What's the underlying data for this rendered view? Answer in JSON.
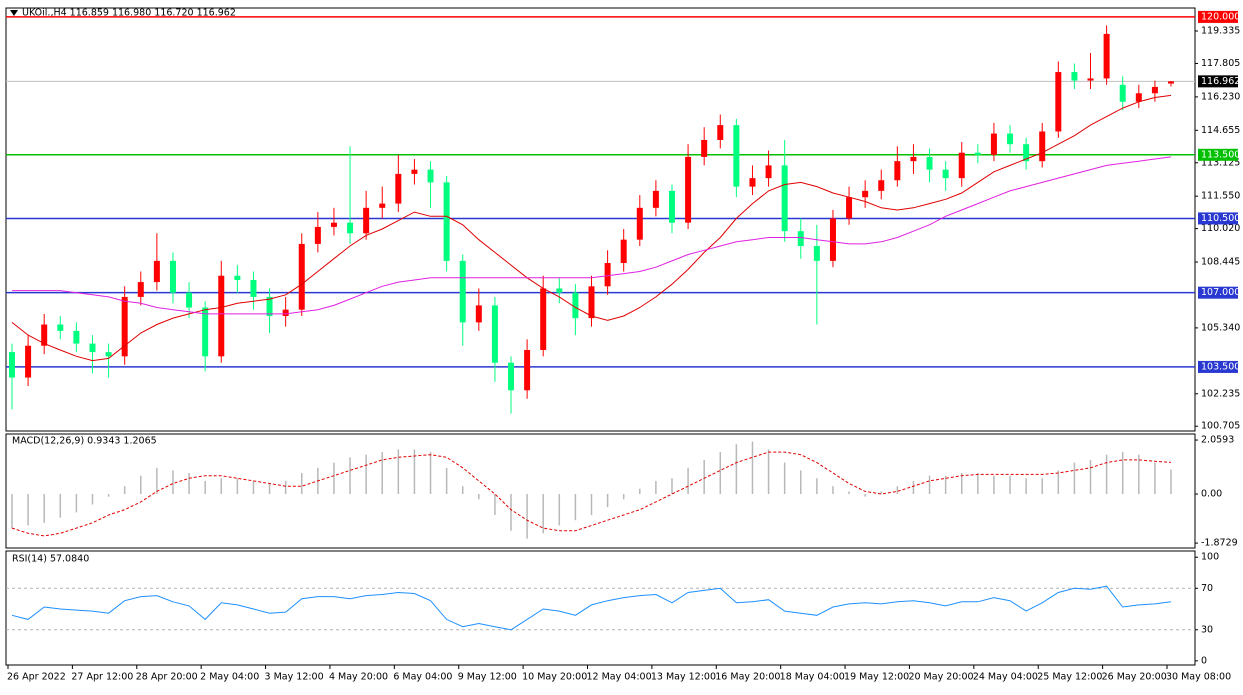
{
  "chart_data": [
    {
      "type": "candlestick",
      "legend": "UKOil.,H4  116.859 116.980 116.720 116.962",
      "categories": [
        "26 Apr 2022",
        null,
        null,
        null,
        "27 Apr 12:00",
        null,
        null,
        null,
        "28 Apr 20:00",
        null,
        null,
        null,
        "2 May 04:00",
        null,
        null,
        null,
        "3 May 12:00",
        null,
        null,
        null,
        "4 May 20:00",
        null,
        null,
        null,
        "6 May 04:00",
        null,
        null,
        null,
        "9 May 12:00",
        null,
        null,
        null,
        "10 May 20:00",
        null,
        null,
        null,
        "12 May 04:00",
        null,
        null,
        null,
        "13 May 12:00",
        null,
        null,
        null,
        "16 May 20:00",
        null,
        null,
        null,
        "18 May 04:00",
        null,
        null,
        null,
        "19 May 12:00",
        null,
        null,
        null,
        "20 May 20:00",
        null,
        null,
        null,
        "24 May 04:00",
        null,
        null,
        null,
        "25 May 12:00",
        null,
        null,
        null,
        "26 May 20:00",
        null,
        null,
        null,
        "30 May 08:00"
      ],
      "open": [
        104.2,
        103.0,
        104.5,
        105.5,
        105.2,
        104.6,
        104.2,
        104.0,
        106.8,
        107.5,
        108.5,
        107.0,
        106.3,
        104.0,
        107.8,
        107.6,
        106.8,
        105.9,
        106.2,
        109.3,
        110.1,
        110.3,
        109.8,
        111.0,
        111.2,
        112.6,
        112.8,
        112.2,
        108.5,
        105.6,
        106.4,
        103.7,
        102.4,
        104.3,
        107.2,
        107.0,
        105.8,
        107.3,
        108.4,
        109.5,
        111.0,
        111.8,
        110.3,
        113.4,
        114.2,
        114.9,
        112.0,
        112.4,
        113.0,
        109.9,
        109.2,
        108.5,
        110.5,
        111.5,
        111.8,
        112.3,
        113.2,
        113.4,
        112.8,
        112.4,
        113.6,
        113.5,
        114.5,
        114.0,
        113.2,
        114.6,
        117.4,
        117.0,
        117.1,
        116.8,
        116.0,
        116.4,
        116.859
      ],
      "high": [
        104.6,
        105.0,
        106.0,
        105.9,
        105.6,
        105.0,
        104.6,
        107.3,
        108.0,
        109.8,
        108.9,
        107.5,
        106.6,
        108.5,
        108.3,
        108.0,
        107.2,
        106.8,
        109.8,
        110.8,
        111.0,
        113.9,
        111.8,
        112.0,
        113.5,
        113.3,
        113.2,
        112.5,
        108.8,
        107.2,
        106.8,
        104.0,
        104.8,
        107.8,
        107.7,
        107.4,
        107.8,
        109.0,
        110.0,
        111.6,
        112.3,
        112.1,
        114.0,
        114.8,
        115.4,
        115.2,
        113.0,
        113.7,
        114.2,
        110.5,
        110.2,
        110.9,
        112.0,
        112.3,
        112.8,
        113.9,
        114.0,
        113.8,
        113.2,
        114.1,
        114.0,
        115.0,
        114.9,
        114.3,
        115.0,
        117.9,
        117.8,
        118.3,
        119.6,
        117.2,
        116.8,
        117.0,
        116.98
      ],
      "low": [
        101.5,
        102.6,
        104.1,
        104.8,
        104.2,
        103.2,
        103.0,
        103.6,
        106.4,
        107.1,
        106.5,
        105.8,
        103.3,
        103.7,
        107.0,
        106.2,
        105.1,
        105.4,
        105.9,
        108.9,
        109.7,
        109.3,
        109.5,
        110.5,
        110.8,
        112.1,
        111.0,
        108.0,
        104.5,
        105.2,
        102.8,
        101.3,
        102.0,
        104.0,
        106.5,
        105.0,
        105.4,
        106.9,
        108.0,
        109.2,
        110.6,
        109.8,
        110.0,
        113.0,
        113.8,
        111.5,
        111.6,
        112.0,
        109.4,
        108.6,
        105.5,
        108.2,
        110.2,
        111.0,
        111.4,
        112.0,
        112.6,
        112.2,
        111.8,
        112.0,
        113.1,
        113.2,
        113.6,
        112.8,
        112.9,
        114.3,
        116.6,
        116.6,
        116.8,
        115.6,
        115.7,
        116.0,
        116.72
      ],
      "close": [
        103.0,
        104.5,
        105.5,
        105.2,
        104.6,
        104.2,
        104.0,
        106.8,
        107.5,
        108.5,
        107.0,
        106.3,
        104.0,
        107.8,
        107.6,
        106.8,
        105.9,
        106.2,
        109.3,
        110.1,
        110.3,
        109.8,
        111.0,
        111.2,
        112.6,
        112.8,
        112.2,
        108.5,
        105.6,
        106.4,
        103.7,
        102.4,
        104.3,
        107.2,
        107.0,
        105.8,
        107.3,
        108.4,
        109.5,
        111.0,
        111.8,
        110.3,
        113.4,
        114.2,
        114.9,
        112.0,
        112.4,
        113.0,
        109.9,
        109.2,
        108.5,
        110.5,
        111.5,
        111.8,
        112.3,
        113.2,
        113.4,
        112.8,
        112.4,
        113.6,
        113.5,
        114.5,
        114.0,
        113.2,
        114.6,
        117.4,
        117.0,
        117.1,
        119.2,
        116.0,
        116.4,
        116.7,
        116.962
      ],
      "up_color": "#ff0000",
      "down_color": "#00ff7f",
      "overlays": [
        {
          "color": "#e00000",
          "values": [
            105.6,
            105.0,
            104.6,
            104.3,
            104.0,
            103.8,
            103.9,
            104.5,
            105.1,
            105.5,
            105.8,
            106.0,
            106.2,
            106.3,
            106.5,
            106.6,
            106.7,
            106.9,
            107.4,
            108.0,
            108.6,
            109.2,
            109.7,
            110.0,
            110.4,
            110.8,
            110.6,
            110.6,
            110.2,
            109.5,
            108.9,
            108.3,
            107.7,
            107.2,
            106.8,
            106.3,
            105.9,
            105.7,
            105.9,
            106.3,
            106.8,
            107.4,
            108.1,
            108.9,
            109.6,
            110.5,
            111.2,
            111.8,
            112.1,
            112.2,
            112.0,
            111.7,
            111.5,
            111.3,
            111.0,
            110.9,
            111.0,
            111.2,
            111.4,
            111.7,
            112.2,
            112.7,
            113.0,
            113.3,
            113.6,
            114.0,
            114.4,
            114.9,
            115.3,
            115.7,
            116.0,
            116.2,
            116.3
          ]
        },
        {
          "color": "#e020e0",
          "values": [
            107.1,
            107.1,
            107.1,
            107.1,
            107.0,
            106.9,
            106.8,
            106.6,
            106.5,
            106.3,
            106.2,
            106.1,
            106.0,
            106.0,
            106.0,
            106.0,
            106.0,
            106.0,
            106.1,
            106.2,
            106.4,
            106.7,
            107.0,
            107.3,
            107.5,
            107.6,
            107.7,
            107.7,
            107.7,
            107.7,
            107.7,
            107.7,
            107.7,
            107.7,
            107.7,
            107.7,
            107.7,
            107.8,
            107.9,
            108.0,
            108.2,
            108.5,
            108.8,
            109.0,
            109.2,
            109.4,
            109.5,
            109.6,
            109.6,
            109.6,
            109.5,
            109.4,
            109.3,
            109.3,
            109.4,
            109.6,
            109.9,
            110.2,
            110.6,
            110.9,
            111.2,
            111.5,
            111.8,
            112.0,
            112.2,
            112.4,
            112.6,
            112.8,
            113.0,
            113.1,
            113.2,
            113.3,
            113.4
          ]
        }
      ],
      "ylim": [
        100.48,
        120.42
      ],
      "yticks": [
        119.335,
        117.805,
        {
          "value": 116.23,
          "label": "116.230"
        },
        114.655,
        113.125,
        {
          "value": 111.55,
          "label": "111.550"
        },
        {
          "value": 110.02,
          "label": "110.020"
        },
        108.445,
        {
          "value": 105.34,
          "label": "105.340"
        },
        102.235,
        100.705
      ],
      "current_price": 116.962,
      "levels": [
        {
          "value": 120,
          "label": "120.000",
          "color": "#ff0000"
        },
        {
          "value": 113.5,
          "label": "113.500",
          "color": "#00c000"
        },
        {
          "value": 110.5,
          "label": "110.500",
          "color": "#2838d0"
        },
        {
          "value": 107,
          "label": "107.000",
          "color": "#2838d0"
        },
        {
          "value": 103.5,
          "label": "103.500",
          "color": "#2838d0"
        }
      ]
    },
    {
      "type": "macd",
      "legend": "MACD(12,26,9) 0.9343 1.2065",
      "histogram": {
        "color": "#b8b8b8",
        "values": [
          -1.3,
          -1.2,
          -1.1,
          -0.9,
          -0.7,
          -0.4,
          -0.1,
          0.3,
          0.7,
          1.0,
          0.9,
          0.8,
          0.5,
          0.6,
          0.6,
          0.5,
          0.4,
          0.5,
          0.8,
          1.0,
          1.2,
          1.4,
          1.5,
          1.6,
          1.7,
          1.7,
          1.6,
          1.0,
          0.3,
          -0.2,
          -0.8,
          -1.4,
          -1.7,
          -1.5,
          -1.2,
          -1.0,
          -0.8,
          -0.5,
          -0.2,
          0.2,
          0.5,
          0.6,
          1.0,
          1.3,
          1.6,
          1.9,
          2.0,
          1.7,
          1.2,
          0.9,
          0.6,
          0.3,
          0.1,
          -0.1,
          0.1,
          0.3,
          0.5,
          0.7,
          0.7,
          0.8,
          0.8,
          0.7,
          0.7,
          0.6,
          0.6,
          0.9,
          1.2,
          1.3,
          1.5,
          1.6,
          1.5,
          1.2,
          0.9343
        ]
      },
      "signal": {
        "color": "#e00000",
        "values": [
          -1.3,
          -1.5,
          -1.6,
          -1.5,
          -1.3,
          -1.1,
          -0.8,
          -0.6,
          -0.3,
          0.1,
          0.4,
          0.6,
          0.7,
          0.7,
          0.6,
          0.5,
          0.4,
          0.3,
          0.3,
          0.5,
          0.7,
          0.9,
          1.1,
          1.3,
          1.4,
          1.45,
          1.5,
          1.4,
          1.0,
          0.5,
          0.0,
          -0.6,
          -1.0,
          -1.3,
          -1.4,
          -1.4,
          -1.2,
          -1.0,
          -0.8,
          -0.6,
          -0.3,
          0.0,
          0.3,
          0.6,
          0.9,
          1.2,
          1.4,
          1.6,
          1.6,
          1.5,
          1.2,
          0.8,
          0.4,
          0.1,
          0.0,
          0.1,
          0.3,
          0.5,
          0.6,
          0.7,
          0.75,
          0.75,
          0.75,
          0.75,
          0.75,
          0.8,
          0.9,
          1.0,
          1.2,
          1.3,
          1.3,
          1.25,
          1.2065
        ]
      },
      "ylim": [
        -2.06,
        2.29
      ],
      "yticks": [
        2.0593,
        {
          "value": 0,
          "label": "0.00"
        },
        -1.8729
      ]
    },
    {
      "type": "rsi",
      "legend": "RSI(14) 57.0840",
      "color": "#1e90ff",
      "values": [
        44,
        40,
        52,
        50,
        49,
        48,
        46,
        58,
        62,
        63,
        57,
        53,
        40,
        56,
        54,
        50,
        46,
        47,
        60,
        62,
        62,
        60,
        63,
        64,
        66,
        65,
        58,
        40,
        33,
        36,
        33,
        30,
        40,
        50,
        48,
        44,
        54,
        58,
        61,
        63,
        64,
        56,
        66,
        68,
        70,
        56,
        57,
        59,
        48,
        46,
        44,
        52,
        55,
        56,
        55,
        57,
        58,
        56,
        53,
        57,
        57,
        61,
        58,
        48,
        56,
        66,
        70,
        69,
        72,
        52,
        54,
        55,
        57.084
      ],
      "ylim": [
        -4,
        106
      ],
      "yticks": [
        100,
        70,
        30,
        0
      ],
      "levels": [
        70,
        30
      ]
    }
  ]
}
